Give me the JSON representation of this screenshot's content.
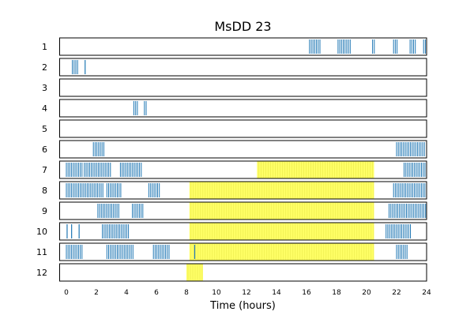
{
  "chart_data": {
    "type": "raster",
    "title": "MsDD 23",
    "xlabel": "Time (hours)",
    "ylabel": "",
    "xlim": [
      0,
      24
    ],
    "x_ticks": [
      0,
      2,
      4,
      6,
      8,
      10,
      12,
      14,
      16,
      18,
      20,
      22,
      24
    ],
    "colors": {
      "event": "#1f77b4",
      "shade": "#ffff66",
      "frame": "#000000"
    },
    "rows": [
      {
        "label": "1",
        "shaded": [],
        "events": [
          [
            16.2,
            16.9
          ],
          [
            18.1,
            19.0
          ],
          [
            20.4,
            20.6
          ],
          [
            21.8,
            22.1
          ],
          [
            22.9,
            23.3
          ],
          [
            23.8,
            24.0
          ]
        ]
      },
      {
        "label": "2",
        "shaded": [],
        "events": [
          [
            0.4,
            0.8
          ],
          [
            1.2,
            1.3
          ]
        ]
      },
      {
        "label": "3",
        "shaded": [],
        "events": []
      },
      {
        "label": "4",
        "shaded": [],
        "events": [
          [
            4.5,
            4.8
          ],
          [
            5.2,
            5.4
          ]
        ]
      },
      {
        "label": "5",
        "shaded": [],
        "events": []
      },
      {
        "label": "6",
        "shaded": [],
        "events": [
          [
            1.8,
            2.5
          ],
          [
            22.0,
            24.0
          ]
        ]
      },
      {
        "label": "7",
        "shaded": [
          [
            12.7,
            20.5
          ]
        ],
        "events": [
          [
            0.0,
            1.1
          ],
          [
            1.2,
            3.0
          ],
          [
            3.6,
            5.1
          ],
          [
            22.5,
            24.0
          ]
        ]
      },
      {
        "label": "8",
        "shaded": [
          [
            8.2,
            20.5
          ]
        ],
        "events": [
          [
            0.0,
            2.5
          ],
          [
            2.7,
            3.7
          ],
          [
            5.5,
            6.3
          ],
          [
            21.8,
            24.0
          ]
        ]
      },
      {
        "label": "9",
        "shaded": [
          [
            8.2,
            20.5
          ]
        ],
        "events": [
          [
            2.1,
            3.6
          ],
          [
            4.4,
            5.1
          ],
          [
            21.5,
            24.0
          ]
        ]
      },
      {
        "label": "10",
        "shaded": [
          [
            8.2,
            20.5
          ]
        ],
        "events": [
          [
            0.0,
            0.1
          ],
          [
            0.3,
            0.4
          ],
          [
            0.8,
            0.9
          ],
          [
            2.4,
            4.2
          ],
          [
            21.3,
            23.0
          ]
        ]
      },
      {
        "label": "11",
        "shaded": [
          [
            8.2,
            20.5
          ]
        ],
        "events": [
          [
            0.0,
            1.1
          ],
          [
            2.7,
            4.5
          ],
          [
            5.8,
            6.9
          ],
          [
            8.5,
            8.6
          ],
          [
            22.0,
            22.8
          ]
        ]
      },
      {
        "label": "12",
        "shaded": [
          [
            8.0,
            9.1
          ]
        ],
        "events": []
      }
    ]
  }
}
